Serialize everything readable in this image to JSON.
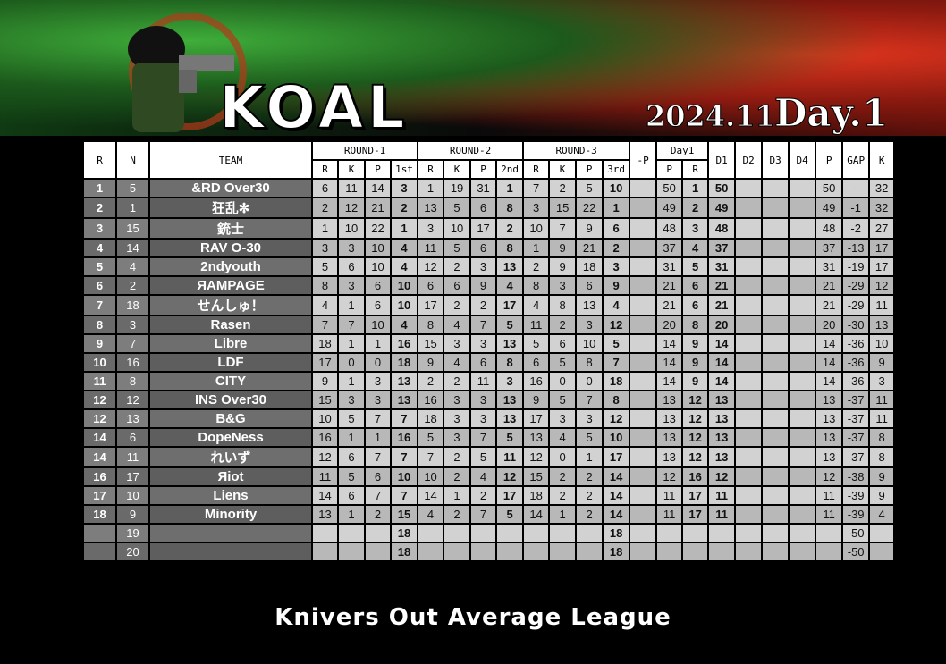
{
  "header": {
    "logo": "KOAL",
    "date": "2024.11",
    "day": "Day.1"
  },
  "table": {
    "groups": [
      "R",
      "N",
      "TEAM",
      "ROUND-1",
      "ROUND-2",
      "ROUND-3",
      "-P",
      "Day1",
      "D1",
      "D2",
      "D3",
      "D4",
      "P",
      "GAP",
      "K"
    ],
    "subheaders": [
      "R",
      "K",
      "P",
      "1st",
      "R",
      "K",
      "P",
      "2nd",
      "R",
      "K",
      "P",
      "3rd",
      "P",
      "R"
    ],
    "rows": [
      [
        "1",
        "5",
        "&RD Over30",
        "6",
        "11",
        "14",
        "3",
        "1",
        "19",
        "31",
        "1",
        "7",
        "2",
        "5",
        "10",
        null,
        "50",
        "1",
        "50",
        null,
        null,
        null,
        "50",
        "-",
        "32"
      ],
      [
        "2",
        "1",
        "狂乱✼",
        "2",
        "12",
        "21",
        "2",
        "13",
        "5",
        "6",
        "8",
        "3",
        "15",
        "22",
        "1",
        null,
        "49",
        "2",
        "49",
        null,
        null,
        null,
        "49",
        "-1",
        "32"
      ],
      [
        "3",
        "15",
        "銃士",
        "1",
        "10",
        "22",
        "1",
        "3",
        "10",
        "17",
        "2",
        "10",
        "7",
        "9",
        "6",
        null,
        "48",
        "3",
        "48",
        null,
        null,
        null,
        "48",
        "-2",
        "27"
      ],
      [
        "4",
        "14",
        "RAV O-30",
        "3",
        "3",
        "10",
        "4",
        "11",
        "5",
        "6",
        "8",
        "1",
        "9",
        "21",
        "2",
        null,
        "37",
        "4",
        "37",
        null,
        null,
        null,
        "37",
        "-13",
        "17"
      ],
      [
        "5",
        "4",
        "2ndyouth",
        "5",
        "6",
        "10",
        "4",
        "12",
        "2",
        "3",
        "13",
        "2",
        "9",
        "18",
        "3",
        null,
        "31",
        "5",
        "31",
        null,
        null,
        null,
        "31",
        "-19",
        "17"
      ],
      [
        "6",
        "2",
        "ЯAMPAGE",
        "8",
        "3",
        "6",
        "10",
        "6",
        "6",
        "9",
        "4",
        "8",
        "3",
        "6",
        "9",
        null,
        "21",
        "6",
        "21",
        null,
        null,
        null,
        "21",
        "-29",
        "12"
      ],
      [
        "7",
        "18",
        "せんしゅ！",
        "4",
        "1",
        "6",
        "10",
        "17",
        "2",
        "2",
        "17",
        "4",
        "8",
        "13",
        "4",
        null,
        "21",
        "6",
        "21",
        null,
        null,
        null,
        "21",
        "-29",
        "11"
      ],
      [
        "8",
        "3",
        "Rasen",
        "7",
        "7",
        "10",
        "4",
        "8",
        "4",
        "7",
        "5",
        "11",
        "2",
        "3",
        "12",
        null,
        "20",
        "8",
        "20",
        null,
        null,
        null,
        "20",
        "-30",
        "13"
      ],
      [
        "9",
        "7",
        "Libre",
        "18",
        "1",
        "1",
        "16",
        "15",
        "3",
        "3",
        "13",
        "5",
        "6",
        "10",
        "5",
        null,
        "14",
        "9",
        "14",
        null,
        null,
        null,
        "14",
        "-36",
        "10"
      ],
      [
        "10",
        "16",
        "LDF",
        "17",
        "0",
        "0",
        "18",
        "9",
        "4",
        "6",
        "8",
        "6",
        "5",
        "8",
        "7",
        null,
        "14",
        "9",
        "14",
        null,
        null,
        null,
        "14",
        "-36",
        "9"
      ],
      [
        "11",
        "8",
        "CITY",
        "9",
        "1",
        "3",
        "13",
        "2",
        "2",
        "11",
        "3",
        "16",
        "0",
        "0",
        "18",
        null,
        "14",
        "9",
        "14",
        null,
        null,
        null,
        "14",
        "-36",
        "3"
      ],
      [
        "12",
        "12",
        "INS Over30",
        "15",
        "3",
        "3",
        "13",
        "16",
        "3",
        "3",
        "13",
        "9",
        "5",
        "7",
        "8",
        null,
        "13",
        "12",
        "13",
        null,
        null,
        null,
        "13",
        "-37",
        "11"
      ],
      [
        "12",
        "13",
        "B&G",
        "10",
        "5",
        "7",
        "7",
        "18",
        "3",
        "3",
        "13",
        "17",
        "3",
        "3",
        "12",
        null,
        "13",
        "12",
        "13",
        null,
        null,
        null,
        "13",
        "-37",
        "11"
      ],
      [
        "14",
        "6",
        "DopeNess",
        "16",
        "1",
        "1",
        "16",
        "5",
        "3",
        "7",
        "5",
        "13",
        "4",
        "5",
        "10",
        null,
        "13",
        "12",
        "13",
        null,
        null,
        null,
        "13",
        "-37",
        "8"
      ],
      [
        "14",
        "11",
        "れいず",
        "12",
        "6",
        "7",
        "7",
        "7",
        "2",
        "5",
        "11",
        "12",
        "0",
        "1",
        "17",
        null,
        "13",
        "12",
        "13",
        null,
        null,
        null,
        "13",
        "-37",
        "8"
      ],
      [
        "16",
        "17",
        "Яiot",
        "11",
        "5",
        "6",
        "10",
        "10",
        "2",
        "4",
        "12",
        "15",
        "2",
        "2",
        "14",
        null,
        "12",
        "16",
        "12",
        null,
        null,
        null,
        "12",
        "-38",
        "9"
      ],
      [
        "17",
        "10",
        "Liens",
        "14",
        "6",
        "7",
        "7",
        "14",
        "1",
        "2",
        "17",
        "18",
        "2",
        "2",
        "14",
        null,
        "11",
        "17",
        "11",
        null,
        null,
        null,
        "11",
        "-39",
        "9"
      ],
      [
        "18",
        "9",
        "Minority",
        "13",
        "1",
        "2",
        "15",
        "4",
        "2",
        "7",
        "5",
        "14",
        "1",
        "2",
        "14",
        null,
        "11",
        "17",
        "11",
        null,
        null,
        null,
        "11",
        "-39",
        "4"
      ],
      [
        null,
        "19",
        null,
        null,
        null,
        null,
        "18",
        null,
        null,
        null,
        null,
        null,
        null,
        null,
        "18",
        null,
        null,
        null,
        null,
        null,
        null,
        null,
        null,
        "-50",
        null
      ],
      [
        null,
        "20",
        null,
        null,
        null,
        null,
        "18",
        null,
        null,
        null,
        null,
        null,
        null,
        null,
        "18",
        null,
        null,
        null,
        null,
        null,
        null,
        null,
        null,
        "-50",
        null
      ]
    ]
  },
  "footer": "Knivers Out Average League"
}
